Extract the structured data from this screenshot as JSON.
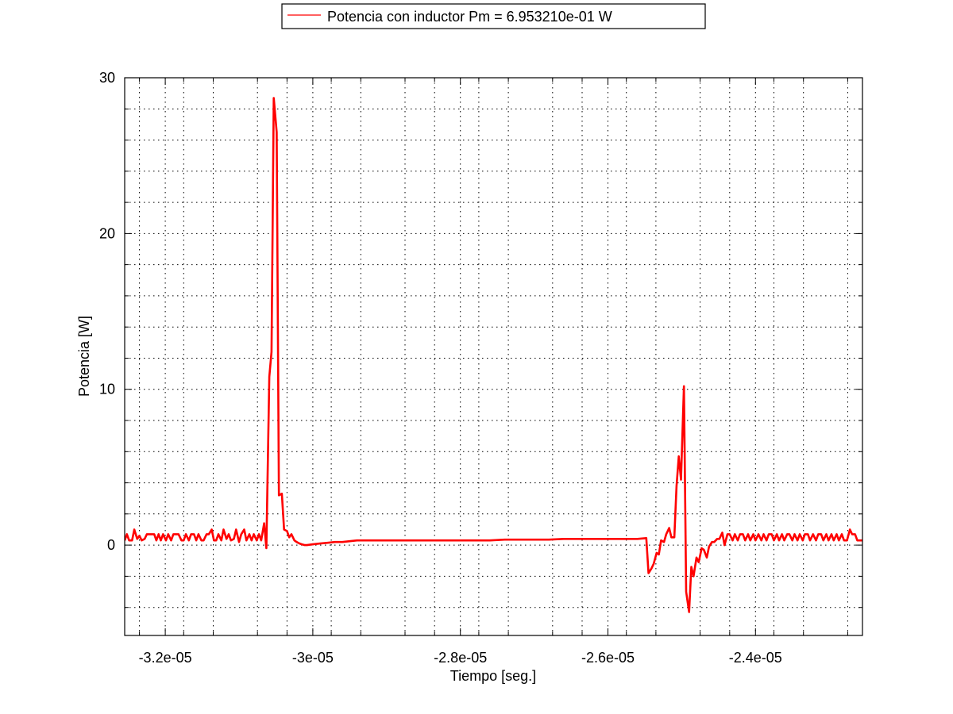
{
  "chart_data": {
    "type": "line",
    "title": "",
    "xlabel": "Tiempo [seg.]",
    "ylabel": "Potencia [W]",
    "xlim": [
      -3.255e-05,
      -2.255e-05
    ],
    "ylim": [
      -5.8,
      30
    ],
    "x_ticks": [
      {
        "value": -3.2e-05,
        "label": "-3.2e-05"
      },
      {
        "value": -3e-05,
        "label": "-3e-05"
      },
      {
        "value": -2.8e-05,
        "label": "-2.8e-05"
      },
      {
        "value": -2.6e-05,
        "label": "-2.6e-05"
      },
      {
        "value": -2.4e-05,
        "label": "-2.4e-05"
      }
    ],
    "y_ticks": [
      {
        "value": 0,
        "label": "0"
      },
      {
        "value": 10,
        "label": "10"
      },
      {
        "value": 20,
        "label": "20"
      },
      {
        "value": 30,
        "label": "30"
      }
    ],
    "x_minor_ticks": [
      -3.235e-05,
      -3.175e-05,
      -3.135e-05,
      -3.075e-05,
      -3.035e-05,
      -2.975e-05,
      -2.935e-05,
      -2.875e-05,
      -2.835e-05,
      -2.775e-05,
      -2.735e-05,
      -2.675e-05,
      -2.635e-05,
      -2.575e-05,
      -2.535e-05,
      -2.475e-05,
      -2.435e-05,
      -2.375e-05,
      -2.335e-05,
      -2.275e-05
    ],
    "y_minor_ticks": [
      -4,
      -2,
      2,
      4,
      6,
      8,
      12,
      14,
      16,
      18,
      22,
      24,
      26,
      28
    ],
    "grid": true,
    "legend_position": "top-center",
    "series": [
      {
        "name": "Potencia con inductor  Pm = 6.953210e-01 W",
        "color": "#ff0000",
        "points": [
          [
            -3.255e-05,
            0.3
          ],
          [
            -3.252e-05,
            0.7
          ],
          [
            -3.249e-05,
            0.3
          ],
          [
            -3.245e-05,
            0.3
          ],
          [
            -3.242e-05,
            1.0
          ],
          [
            -3.238e-05,
            0.4
          ],
          [
            -3.235e-05,
            0.6
          ],
          [
            -3.232e-05,
            0.3
          ],
          [
            -3.228e-05,
            0.4
          ],
          [
            -3.225e-05,
            0.7
          ],
          [
            -3.215e-05,
            0.7
          ],
          [
            -3.212e-05,
            0.3
          ],
          [
            -3.209e-05,
            0.7
          ],
          [
            -3.206e-05,
            0.3
          ],
          [
            -3.203e-05,
            0.7
          ],
          [
            -3.199e-05,
            0.3
          ],
          [
            -3.196e-05,
            0.7
          ],
          [
            -3.192e-05,
            0.3
          ],
          [
            -3.189e-05,
            0.7
          ],
          [
            -3.182e-05,
            0.7
          ],
          [
            -3.178e-05,
            0.3
          ],
          [
            -3.175e-05,
            0.3
          ],
          [
            -3.172e-05,
            0.7
          ],
          [
            -3.168e-05,
            0.3
          ],
          [
            -3.165e-05,
            0.7
          ],
          [
            -3.161e-05,
            0.7
          ],
          [
            -3.158e-05,
            0.3
          ],
          [
            -3.155e-05,
            0.7
          ],
          [
            -3.151e-05,
            0.3
          ],
          [
            -3.148e-05,
            0.3
          ],
          [
            -3.144e-05,
            0.7
          ],
          [
            -3.141e-05,
            0.7
          ],
          [
            -3.137e-05,
            1.0
          ],
          [
            -3.134e-05,
            0.3
          ],
          [
            -3.131e-05,
            0.3
          ],
          [
            -3.128e-05,
            0.7
          ],
          [
            -3.124e-05,
            0.3
          ],
          [
            -3.121e-05,
            1.0
          ],
          [
            -3.117e-05,
            0.4
          ],
          [
            -3.114e-05,
            0.7
          ],
          [
            -3.111e-05,
            0.3
          ],
          [
            -3.107e-05,
            0.4
          ],
          [
            -3.104e-05,
            1.0
          ],
          [
            -3.1e-05,
            0.2
          ],
          [
            -3.097e-05,
            0.7
          ],
          [
            -3.093e-05,
            1.0
          ],
          [
            -3.09e-05,
            0.3
          ],
          [
            -3.086e-05,
            0.7
          ],
          [
            -3.083e-05,
            0.3
          ],
          [
            -3.08e-05,
            0.7
          ],
          [
            -3.076e-05,
            0.3
          ],
          [
            -3.073e-05,
            0.7
          ],
          [
            -3.07e-05,
            0.3
          ],
          [
            -3.066e-05,
            1.4
          ],
          [
            -3.063e-05,
            -0.2
          ],
          [
            -3.059e-05,
            10.8
          ],
          [
            -3.056e-05,
            12.4
          ],
          [
            -3.053e-05,
            28.7
          ],
          [
            -3.049e-05,
            26.5
          ],
          [
            -3.046e-05,
            3.2
          ],
          [
            -3.042e-05,
            3.3
          ],
          [
            -3.039e-05,
            1.0
          ],
          [
            -3.035e-05,
            0.9
          ],
          [
            -3.032e-05,
            0.5
          ],
          [
            -3.029e-05,
            0.7
          ],
          [
            -3.025e-05,
            0.3
          ],
          [
            -3.022e-05,
            0.2
          ],
          [
            -3.018e-05,
            0.1
          ],
          [
            -3.015e-05,
            0.05
          ],
          [
            -3.011e-05,
            0.0
          ],
          [
            -3.008e-05,
            0.0
          ],
          [
            -3e-05,
            0.05
          ],
          [
            -2.99e-05,
            0.1
          ],
          [
            -2.98e-05,
            0.15
          ],
          [
            -2.97e-05,
            0.2
          ],
          [
            -2.96e-05,
            0.2
          ],
          [
            -2.95e-05,
            0.25
          ],
          [
            -2.94e-05,
            0.3
          ],
          [
            -2.93e-05,
            0.3
          ],
          [
            -2.92e-05,
            0.3
          ],
          [
            -2.9e-05,
            0.3
          ],
          [
            -2.88e-05,
            0.3
          ],
          [
            -2.86e-05,
            0.3
          ],
          [
            -2.84e-05,
            0.3
          ],
          [
            -2.82e-05,
            0.3
          ],
          [
            -2.8e-05,
            0.3
          ],
          [
            -2.78e-05,
            0.3
          ],
          [
            -2.76e-05,
            0.3
          ],
          [
            -2.74e-05,
            0.35
          ],
          [
            -2.72e-05,
            0.35
          ],
          [
            -2.7e-05,
            0.35
          ],
          [
            -2.68e-05,
            0.35
          ],
          [
            -2.66e-05,
            0.4
          ],
          [
            -2.64e-05,
            0.4
          ],
          [
            -2.62e-05,
            0.4
          ],
          [
            -2.6e-05,
            0.4
          ],
          [
            -2.58e-05,
            0.4
          ],
          [
            -2.56e-05,
            0.4
          ],
          [
            -2.548e-05,
            0.45
          ],
          [
            -2.545e-05,
            -1.8
          ],
          [
            -2.541e-05,
            -1.5
          ],
          [
            -2.538e-05,
            -1.2
          ],
          [
            -2.534e-05,
            -0.5
          ],
          [
            -2.531e-05,
            -0.6
          ],
          [
            -2.528e-05,
            0.3
          ],
          [
            -2.524e-05,
            0.2
          ],
          [
            -2.521e-05,
            0.7
          ],
          [
            -2.517e-05,
            1.1
          ],
          [
            -2.514e-05,
            0.5
          ],
          [
            -2.51e-05,
            0.5
          ],
          [
            -2.507e-05,
            3.8
          ],
          [
            -2.504e-05,
            5.7
          ],
          [
            -2.501e-05,
            4.2
          ],
          [
            -2.497e-05,
            10.2
          ],
          [
            -2.494e-05,
            -3.0
          ],
          [
            -2.49e-05,
            -4.3
          ],
          [
            -2.487e-05,
            -1.4
          ],
          [
            -2.484e-05,
            -2.0
          ],
          [
            -2.48e-05,
            -0.8
          ],
          [
            -2.477e-05,
            -1.1
          ],
          [
            -2.473e-05,
            -0.2
          ],
          [
            -2.47e-05,
            -0.3
          ],
          [
            -2.466e-05,
            -0.8
          ],
          [
            -2.463e-05,
            -0.1
          ],
          [
            -2.459e-05,
            0.2
          ],
          [
            -2.456e-05,
            0.2
          ],
          [
            -2.452e-05,
            0.4
          ],
          [
            -2.449e-05,
            0.4
          ],
          [
            -2.445e-05,
            0.8
          ],
          [
            -2.442e-05,
            0.0
          ],
          [
            -2.438e-05,
            0.7
          ],
          [
            -2.435e-05,
            0.7
          ],
          [
            -2.431e-05,
            0.3
          ],
          [
            -2.428e-05,
            0.7
          ],
          [
            -2.424e-05,
            0.3
          ],
          [
            -2.421e-05,
            0.7
          ],
          [
            -2.417e-05,
            0.7
          ],
          [
            -2.414e-05,
            0.3
          ],
          [
            -2.41e-05,
            0.7
          ],
          [
            -2.407e-05,
            0.3
          ],
          [
            -2.403e-05,
            0.7
          ],
          [
            -2.4e-05,
            0.3
          ],
          [
            -2.396e-05,
            0.7
          ],
          [
            -2.392e-05,
            0.3
          ],
          [
            -2.389e-05,
            0.7
          ],
          [
            -2.385e-05,
            0.3
          ],
          [
            -2.382e-05,
            0.7
          ],
          [
            -2.378e-05,
            0.7
          ],
          [
            -2.375e-05,
            0.3
          ],
          [
            -2.371e-05,
            0.7
          ],
          [
            -2.368e-05,
            0.3
          ],
          [
            -2.364e-05,
            0.7
          ],
          [
            -2.361e-05,
            0.3
          ],
          [
            -2.357e-05,
            0.7
          ],
          [
            -2.354e-05,
            0.7
          ],
          [
            -2.35e-05,
            0.3
          ],
          [
            -2.347e-05,
            0.7
          ],
          [
            -2.343e-05,
            0.3
          ],
          [
            -2.34e-05,
            0.7
          ],
          [
            -2.336e-05,
            0.3
          ],
          [
            -2.333e-05,
            0.7
          ],
          [
            -2.329e-05,
            0.7
          ],
          [
            -2.326e-05,
            0.3
          ],
          [
            -2.322e-05,
            0.7
          ],
          [
            -2.318e-05,
            0.3
          ],
          [
            -2.315e-05,
            0.7
          ],
          [
            -2.311e-05,
            0.7
          ],
          [
            -2.308e-05,
            0.3
          ],
          [
            -2.304e-05,
            0.7
          ],
          [
            -2.301e-05,
            0.3
          ],
          [
            -2.297e-05,
            0.7
          ],
          [
            -2.294e-05,
            0.3
          ],
          [
            -2.29e-05,
            0.7
          ],
          [
            -2.287e-05,
            0.3
          ],
          [
            -2.283e-05,
            0.7
          ],
          [
            -2.28e-05,
            0.3
          ],
          [
            -2.276e-05,
            0.3
          ],
          [
            -2.272e-05,
            1.0
          ],
          [
            -2.269e-05,
            0.7
          ],
          [
            -2.265e-05,
            0.7
          ],
          [
            -2.262e-05,
            0.3
          ],
          [
            -2.258e-05,
            0.3
          ],
          [
            -2.255e-05,
            0.3
          ]
        ]
      }
    ]
  }
}
